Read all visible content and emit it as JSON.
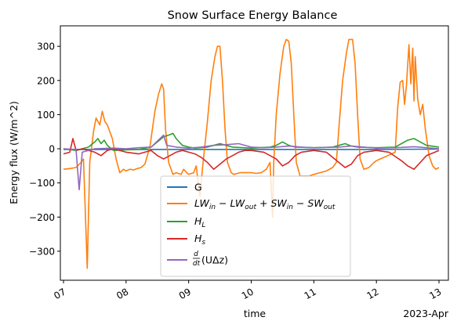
{
  "chart_data": {
    "type": "line",
    "title": "Snow Surface Energy Balance",
    "xlabel": "time",
    "ylabel": "Energy flux (W/m^2)",
    "x_offset_label": "2023-Apr",
    "x_tick_labels": [
      "07",
      "08",
      "09",
      "10",
      "11",
      "12",
      "13"
    ],
    "x_range_days": [
      -0.05,
      6.15
    ],
    "ylim": [
      -385,
      360
    ],
    "y_ticks": [
      -300,
      -200,
      -100,
      0,
      100,
      200,
      300
    ],
    "grid": false,
    "legend_position": "lower-center",
    "series": [
      {
        "name": "G",
        "color": "#1f77b4",
        "points": [
          [
            0.0,
            -2
          ],
          [
            1.0,
            -2
          ],
          [
            2.0,
            -2
          ],
          [
            3.0,
            -2
          ],
          [
            4.0,
            -2
          ],
          [
            5.0,
            -2
          ],
          [
            6.0,
            -1
          ]
        ]
      },
      {
        "name": "LW_in - LW_out + SW_in - SW_out",
        "color": "#ff7f0e",
        "points": [
          [
            0.0,
            -60
          ],
          [
            0.1,
            -58
          ],
          [
            0.2,
            -55
          ],
          [
            0.28,
            -40
          ],
          [
            0.32,
            -30
          ],
          [
            0.38,
            -350
          ],
          [
            0.42,
            -40
          ],
          [
            0.48,
            50
          ],
          [
            0.52,
            90
          ],
          [
            0.58,
            70
          ],
          [
            0.62,
            110
          ],
          [
            0.66,
            80
          ],
          [
            0.7,
            70
          ],
          [
            0.78,
            30
          ],
          [
            0.84,
            -30
          ],
          [
            0.9,
            -70
          ],
          [
            0.96,
            -60
          ],
          [
            1.0,
            -65
          ],
          [
            1.06,
            -60
          ],
          [
            1.12,
            -62
          ],
          [
            1.18,
            -58
          ],
          [
            1.24,
            -55
          ],
          [
            1.3,
            -45
          ],
          [
            1.38,
            5
          ],
          [
            1.46,
            110
          ],
          [
            1.52,
            160
          ],
          [
            1.57,
            190
          ],
          [
            1.6,
            175
          ],
          [
            1.63,
            60
          ],
          [
            1.68,
            -40
          ],
          [
            1.75,
            -75
          ],
          [
            1.8,
            -70
          ],
          [
            1.88,
            -75
          ],
          [
            1.92,
            -60
          ],
          [
            1.97,
            -70
          ],
          [
            2.0,
            -75
          ],
          [
            2.08,
            -70
          ],
          [
            2.12,
            -50
          ],
          [
            2.18,
            -140
          ],
          [
            2.22,
            -60
          ],
          [
            2.3,
            80
          ],
          [
            2.36,
            200
          ],
          [
            2.42,
            270
          ],
          [
            2.46,
            300
          ],
          [
            2.5,
            300
          ],
          [
            2.54,
            200
          ],
          [
            2.58,
            60
          ],
          [
            2.62,
            -40
          ],
          [
            2.68,
            -70
          ],
          [
            2.72,
            -75
          ],
          [
            2.82,
            -70
          ],
          [
            2.9,
            -70
          ],
          [
            3.0,
            -70
          ],
          [
            3.08,
            -72
          ],
          [
            3.16,
            -70
          ],
          [
            3.24,
            -60
          ],
          [
            3.3,
            -40
          ],
          [
            3.34,
            -200
          ],
          [
            3.36,
            -40
          ],
          [
            3.4,
            100
          ],
          [
            3.46,
            220
          ],
          [
            3.52,
            300
          ],
          [
            3.56,
            320
          ],
          [
            3.6,
            315
          ],
          [
            3.64,
            250
          ],
          [
            3.68,
            100
          ],
          [
            3.72,
            -40
          ],
          [
            3.78,
            -80
          ],
          [
            3.84,
            -80
          ],
          [
            3.92,
            -80
          ],
          [
            4.0,
            -75
          ],
          [
            4.1,
            -70
          ],
          [
            4.2,
            -65
          ],
          [
            4.3,
            -55
          ],
          [
            4.36,
            -40
          ],
          [
            4.4,
            60
          ],
          [
            4.46,
            200
          ],
          [
            4.52,
            280
          ],
          [
            4.56,
            320
          ],
          [
            4.62,
            320
          ],
          [
            4.66,
            250
          ],
          [
            4.7,
            100
          ],
          [
            4.74,
            -30
          ],
          [
            4.8,
            -60
          ],
          [
            4.88,
            -55
          ],
          [
            4.96,
            -40
          ],
          [
            5.0,
            -35
          ],
          [
            5.06,
            -30
          ],
          [
            5.12,
            -25
          ],
          [
            5.18,
            -20
          ],
          [
            5.24,
            -15
          ],
          [
            5.3,
            -10
          ],
          [
            5.34,
            120
          ],
          [
            5.38,
            195
          ],
          [
            5.42,
            200
          ],
          [
            5.45,
            130
          ],
          [
            5.48,
            185
          ],
          [
            5.52,
            305
          ],
          [
            5.55,
            190
          ],
          [
            5.58,
            295
          ],
          [
            5.6,
            140
          ],
          [
            5.62,
            270
          ],
          [
            5.66,
            145
          ],
          [
            5.7,
            100
          ],
          [
            5.74,
            130
          ],
          [
            5.78,
            60
          ],
          [
            5.84,
            -20
          ],
          [
            5.9,
            -50
          ],
          [
            5.95,
            -60
          ],
          [
            6.0,
            -55
          ]
        ]
      },
      {
        "name": "H_L",
        "color": "#2ca02c",
        "points": [
          [
            0.0,
            0
          ],
          [
            0.2,
            -5
          ],
          [
            0.4,
            5
          ],
          [
            0.5,
            20
          ],
          [
            0.55,
            30
          ],
          [
            0.6,
            15
          ],
          [
            0.65,
            25
          ],
          [
            0.7,
            10
          ],
          [
            0.8,
            -5
          ],
          [
            1.0,
            -3
          ],
          [
            1.2,
            -2
          ],
          [
            1.4,
            5
          ],
          [
            1.5,
            20
          ],
          [
            1.6,
            35
          ],
          [
            1.68,
            40
          ],
          [
            1.75,
            45
          ],
          [
            1.8,
            30
          ],
          [
            1.9,
            10
          ],
          [
            2.0,
            5
          ],
          [
            2.1,
            2
          ],
          [
            2.3,
            5
          ],
          [
            2.4,
            10
          ],
          [
            2.5,
            15
          ],
          [
            2.6,
            10
          ],
          [
            2.7,
            5
          ],
          [
            3.0,
            2
          ],
          [
            3.3,
            5
          ],
          [
            3.4,
            10
          ],
          [
            3.5,
            20
          ],
          [
            3.6,
            10
          ],
          [
            3.7,
            5
          ],
          [
            4.0,
            3
          ],
          [
            4.3,
            5
          ],
          [
            4.4,
            10
          ],
          [
            4.5,
            15
          ],
          [
            4.6,
            8
          ],
          [
            4.7,
            5
          ],
          [
            5.0,
            3
          ],
          [
            5.3,
            5
          ],
          [
            5.4,
            15
          ],
          [
            5.5,
            25
          ],
          [
            5.6,
            30
          ],
          [
            5.7,
            20
          ],
          [
            5.8,
            10
          ],
          [
            6.0,
            5
          ]
        ]
      },
      {
        "name": "H_s",
        "color": "#d62728",
        "points": [
          [
            0.0,
            -15
          ],
          [
            0.1,
            -10
          ],
          [
            0.15,
            30
          ],
          [
            0.2,
            -5
          ],
          [
            0.3,
            0
          ],
          [
            0.4,
            -5
          ],
          [
            0.5,
            -10
          ],
          [
            0.6,
            -20
          ],
          [
            0.7,
            -5
          ],
          [
            0.8,
            0
          ],
          [
            0.9,
            -5
          ],
          [
            1.0,
            -10
          ],
          [
            1.2,
            -15
          ],
          [
            1.3,
            -10
          ],
          [
            1.4,
            -5
          ],
          [
            1.5,
            -20
          ],
          [
            1.6,
            -30
          ],
          [
            1.7,
            -20
          ],
          [
            1.8,
            -10
          ],
          [
            1.9,
            -5
          ],
          [
            2.0,
            -10
          ],
          [
            2.1,
            -15
          ],
          [
            2.2,
            -25
          ],
          [
            2.3,
            -40
          ],
          [
            2.4,
            -60
          ],
          [
            2.5,
            -45
          ],
          [
            2.6,
            -30
          ],
          [
            2.7,
            -20
          ],
          [
            2.8,
            -10
          ],
          [
            2.9,
            -5
          ],
          [
            3.0,
            -5
          ],
          [
            3.2,
            -10
          ],
          [
            3.4,
            -30
          ],
          [
            3.5,
            -50
          ],
          [
            3.6,
            -40
          ],
          [
            3.7,
            -20
          ],
          [
            3.8,
            -10
          ],
          [
            4.0,
            -5
          ],
          [
            4.2,
            -10
          ],
          [
            4.4,
            -40
          ],
          [
            4.5,
            -55
          ],
          [
            4.6,
            -45
          ],
          [
            4.7,
            -20
          ],
          [
            4.8,
            -10
          ],
          [
            5.0,
            -5
          ],
          [
            5.2,
            -10
          ],
          [
            5.4,
            -35
          ],
          [
            5.5,
            -50
          ],
          [
            5.6,
            -60
          ],
          [
            5.7,
            -40
          ],
          [
            5.8,
            -20
          ],
          [
            6.0,
            -5
          ]
        ]
      },
      {
        "name": "d/dt(UΔz)",
        "color": "#9467bd",
        "points": [
          [
            0.0,
            0
          ],
          [
            0.2,
            -2
          ],
          [
            0.25,
            -120
          ],
          [
            0.3,
            -10
          ],
          [
            0.5,
            0
          ],
          [
            0.8,
            2
          ],
          [
            1.0,
            0
          ],
          [
            1.2,
            3
          ],
          [
            1.4,
            5
          ],
          [
            1.6,
            40
          ],
          [
            1.65,
            10
          ],
          [
            1.8,
            5
          ],
          [
            2.0,
            2
          ],
          [
            2.2,
            5
          ],
          [
            2.4,
            10
          ],
          [
            2.6,
            12
          ],
          [
            2.8,
            15
          ],
          [
            3.0,
            5
          ],
          [
            3.2,
            3
          ],
          [
            3.4,
            5
          ],
          [
            3.6,
            8
          ],
          [
            3.8,
            5
          ],
          [
            4.0,
            3
          ],
          [
            4.4,
            5
          ],
          [
            4.6,
            8
          ],
          [
            4.8,
            5
          ],
          [
            5.0,
            2
          ],
          [
            5.4,
            4
          ],
          [
            5.6,
            6
          ],
          [
            5.8,
            3
          ],
          [
            6.0,
            0
          ]
        ]
      }
    ]
  },
  "legend": {
    "labels": [
      "G",
      "LW",
      "H",
      "H",
      "(UΔz)"
    ],
    "subscripts": [
      "",
      "",
      "L",
      "s",
      ""
    ]
  }
}
